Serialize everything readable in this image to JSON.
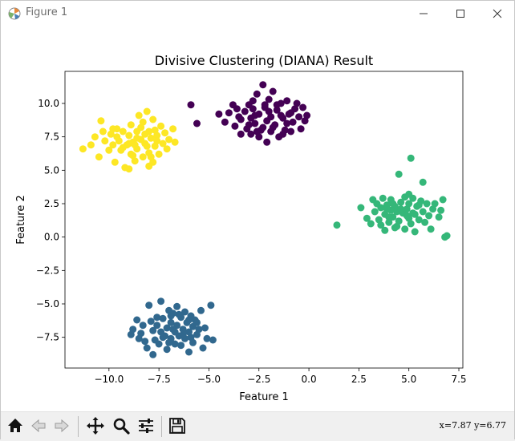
{
  "window": {
    "title": "Figure 1"
  },
  "toolbar": {
    "buttons": [
      "home-icon",
      "back-arrow-icon",
      "forward-arrow-icon",
      "pan-icon",
      "zoom-icon",
      "configure-subplots-icon",
      "save-icon"
    ],
    "coords": "x=7.87 y=6.77"
  },
  "chart_data": {
    "type": "scatter",
    "title": "Divisive Clustering (DIANA) Result",
    "xlabel": "Feature 1",
    "ylabel": "Feature 2",
    "xlim": [
      -12.2,
      7.7
    ],
    "ylim": [
      -9.8,
      12.4
    ],
    "xticks": [
      -10.0,
      -7.5,
      -5.0,
      -2.5,
      0.0,
      2.5,
      5.0,
      7.5
    ],
    "xtick_labels": [
      "−10.0",
      "−7.5",
      "−5.0",
      "−2.5",
      "0.0",
      "2.5",
      "5.0",
      "7.5"
    ],
    "yticks": [
      -7.5,
      -5.0,
      -2.5,
      0.0,
      2.5,
      5.0,
      7.5,
      10.0
    ],
    "ytick_labels": [
      "−7.5",
      "−5.0",
      "−2.5",
      "0.0",
      "2.5",
      "5.0",
      "7.5",
      "10.0"
    ],
    "grid": false,
    "series": [
      {
        "color": "#440154",
        "points": [
          [
            -5.9,
            9.9
          ],
          [
            -5.6,
            8.5
          ],
          [
            -4.5,
            9.2
          ],
          [
            -4.2,
            8.6
          ],
          [
            -4.0,
            9.3
          ],
          [
            -3.7,
            8.3
          ],
          [
            -3.6,
            9.6
          ],
          [
            -3.4,
            8.8
          ],
          [
            -3.4,
            7.7
          ],
          [
            -3.2,
            9.4
          ],
          [
            -3.1,
            8.1
          ],
          [
            -3.0,
            9.9
          ],
          [
            -2.9,
            7.7
          ],
          [
            -2.9,
            8.9
          ],
          [
            -2.8,
            9.6
          ],
          [
            -2.7,
            8.5
          ],
          [
            -2.6,
            10.7
          ],
          [
            -2.5,
            9.2
          ],
          [
            -2.5,
            7.5
          ],
          [
            -2.4,
            8.0
          ],
          [
            -2.3,
            11.4
          ],
          [
            -2.2,
            9.7
          ],
          [
            -2.1,
            8.7
          ],
          [
            -2.1,
            7.1
          ],
          [
            -2.0,
            10.3
          ],
          [
            -1.9,
            9.0
          ],
          [
            -1.9,
            7.9
          ],
          [
            -1.8,
            10.9
          ],
          [
            -1.7,
            8.4
          ],
          [
            -1.6,
            9.5
          ],
          [
            -1.5,
            7.5
          ],
          [
            -1.4,
            10.0
          ],
          [
            -1.3,
            8.9
          ],
          [
            -1.2,
            8.0
          ],
          [
            -1.1,
            10.2
          ],
          [
            -1.0,
            9.2
          ],
          [
            -0.9,
            7.9
          ],
          [
            -0.8,
            8.6
          ],
          [
            -0.7,
            9.6
          ],
          [
            -0.5,
            9.0
          ],
          [
            -0.4,
            8.1
          ],
          [
            -0.3,
            9.7
          ],
          [
            -0.2,
            8.7
          ],
          [
            -3.8,
            9.9
          ],
          [
            -2.7,
            9.1
          ],
          [
            -2.3,
            8.2
          ],
          [
            -1.6,
            9.9
          ],
          [
            -1.1,
            8.5
          ],
          [
            -0.6,
            10.0
          ],
          [
            -3.0,
            8.4
          ],
          [
            -2.0,
            9.4
          ],
          [
            -1.3,
            7.7
          ],
          [
            -2.8,
            10.2
          ],
          [
            -1.8,
            8.2
          ],
          [
            -0.9,
            9.3
          ],
          [
            -2.6,
            7.9
          ],
          [
            -3.5,
            9.0
          ],
          [
            -0.1,
            9.1
          ],
          [
            -2.2,
            9.9
          ],
          [
            -1.4,
            9.1
          ]
        ]
      },
      {
        "color": "#31688e",
        "points": [
          [
            -8.9,
            -7.3
          ],
          [
            -8.8,
            -6.9
          ],
          [
            -8.6,
            -6.2
          ],
          [
            -8.5,
            -7.6
          ],
          [
            -8.4,
            -7.2
          ],
          [
            -8.3,
            -6.6
          ],
          [
            -8.2,
            -7.8
          ],
          [
            -8.1,
            -8.3
          ],
          [
            -8.0,
            -5.1
          ],
          [
            -7.9,
            -6.3
          ],
          [
            -7.8,
            -7.0
          ],
          [
            -7.8,
            -8.8
          ],
          [
            -7.7,
            -7.7
          ],
          [
            -7.6,
            -6.6
          ],
          [
            -7.5,
            -8.0
          ],
          [
            -7.4,
            -7.1
          ],
          [
            -7.4,
            -4.8
          ],
          [
            -7.3,
            -6.1
          ],
          [
            -7.2,
            -7.4
          ],
          [
            -7.1,
            -8.4
          ],
          [
            -7.1,
            -6.8
          ],
          [
            -7.0,
            -5.5
          ],
          [
            -6.9,
            -7.6
          ],
          [
            -6.9,
            -6.4
          ],
          [
            -6.8,
            -5.7
          ],
          [
            -6.7,
            -7.1
          ],
          [
            -6.7,
            -8.0
          ],
          [
            -6.6,
            -6.6
          ],
          [
            -6.6,
            -5.2
          ],
          [
            -6.5,
            -7.4
          ],
          [
            -6.4,
            -6.0
          ],
          [
            -6.4,
            -8.1
          ],
          [
            -6.3,
            -6.9
          ],
          [
            -6.2,
            -5.6
          ],
          [
            -6.2,
            -7.6
          ],
          [
            -6.1,
            -6.4
          ],
          [
            -6.0,
            -7.1
          ],
          [
            -6.0,
            -8.6
          ],
          [
            -5.9,
            -5.9
          ],
          [
            -5.8,
            -6.7
          ],
          [
            -5.8,
            -7.9
          ],
          [
            -5.7,
            -6.2
          ],
          [
            -5.6,
            -7.3
          ],
          [
            -5.5,
            -6.9
          ],
          [
            -5.4,
            -5.5
          ],
          [
            -5.3,
            -8.3
          ],
          [
            -5.2,
            -6.8
          ],
          [
            -5.1,
            -7.6
          ],
          [
            -4.9,
            -5.1
          ],
          [
            -4.8,
            -7.7
          ],
          [
            -6.8,
            -6.9
          ],
          [
            -7.6,
            -6.0
          ],
          [
            -6.0,
            -6.2
          ],
          [
            -7.0,
            -7.9
          ],
          [
            -6.5,
            -5.8
          ],
          [
            -5.9,
            -7.5
          ],
          [
            -7.3,
            -7.5
          ],
          [
            -6.3,
            -7.3
          ],
          [
            -5.6,
            -6.4
          ],
          [
            -6.9,
            -5.9
          ]
        ]
      },
      {
        "color": "#35b779",
        "points": [
          [
            1.4,
            0.9
          ],
          [
            2.6,
            2.2
          ],
          [
            2.9,
            1.4
          ],
          [
            3.1,
            1.0
          ],
          [
            3.2,
            2.8
          ],
          [
            3.3,
            1.9
          ],
          [
            3.4,
            2.5
          ],
          [
            3.5,
            1.3
          ],
          [
            3.6,
            0.9
          ],
          [
            3.6,
            2.2
          ],
          [
            3.7,
            2.9
          ],
          [
            3.8,
            0.5
          ],
          [
            3.8,
            1.7
          ],
          [
            3.9,
            2.4
          ],
          [
            4.0,
            1.1
          ],
          [
            4.1,
            2.0
          ],
          [
            4.1,
            2.8
          ],
          [
            4.2,
            1.5
          ],
          [
            4.3,
            0.7
          ],
          [
            4.3,
            2.3
          ],
          [
            4.4,
            1.9
          ],
          [
            4.5,
            4.7
          ],
          [
            4.5,
            1.2
          ],
          [
            4.6,
            2.6
          ],
          [
            4.7,
            1.8
          ],
          [
            4.8,
            0.6
          ],
          [
            4.8,
            3.0
          ],
          [
            4.9,
            2.1
          ],
          [
            5.0,
            1.4
          ],
          [
            5.0,
            2.5
          ],
          [
            5.1,
            5.9
          ],
          [
            5.1,
            1.0
          ],
          [
            5.2,
            2.9
          ],
          [
            5.3,
            1.7
          ],
          [
            5.3,
            0.4
          ],
          [
            5.4,
            2.3
          ],
          [
            5.5,
            1.3
          ],
          [
            5.6,
            2.7
          ],
          [
            5.7,
            1.9
          ],
          [
            5.7,
            4.1
          ],
          [
            5.8,
            1.1
          ],
          [
            5.9,
            2.5
          ],
          [
            6.0,
            1.6
          ],
          [
            6.1,
            0.6
          ],
          [
            6.2,
            2.1
          ],
          [
            6.3,
            2.5
          ],
          [
            6.5,
            1.5
          ],
          [
            6.6,
            2.0
          ],
          [
            6.7,
            2.8
          ],
          [
            6.8,
            0.0
          ],
          [
            6.9,
            0.1
          ],
          [
            4.0,
            1.5
          ],
          [
            4.6,
            2.1
          ],
          [
            5.2,
            1.8
          ],
          [
            3.9,
            2.1
          ],
          [
            4.9,
            1.6
          ],
          [
            4.4,
            0.8
          ],
          [
            5.5,
            2.4
          ],
          [
            4.2,
            2.5
          ],
          [
            5.0,
            3.2
          ]
        ]
      },
      {
        "color": "#fde725",
        "points": [
          [
            -11.3,
            6.6
          ],
          [
            -10.9,
            6.9
          ],
          [
            -10.7,
            7.5
          ],
          [
            -10.5,
            6.0
          ],
          [
            -10.4,
            8.7
          ],
          [
            -10.3,
            7.9
          ],
          [
            -10.2,
            7.2
          ],
          [
            -10.0,
            6.5
          ],
          [
            -9.9,
            7.7
          ],
          [
            -9.8,
            6.9
          ],
          [
            -9.7,
            5.6
          ],
          [
            -9.6,
            8.1
          ],
          [
            -9.5,
            7.2
          ],
          [
            -9.4,
            6.5
          ],
          [
            -9.3,
            7.9
          ],
          [
            -9.2,
            5.2
          ],
          [
            -9.1,
            6.9
          ],
          [
            -9.0,
            7.6
          ],
          [
            -8.9,
            6.2
          ],
          [
            -8.9,
            8.4
          ],
          [
            -8.8,
            7.1
          ],
          [
            -8.7,
            5.7
          ],
          [
            -8.6,
            7.9
          ],
          [
            -8.6,
            6.6
          ],
          [
            -8.5,
            9.1
          ],
          [
            -8.4,
            7.3
          ],
          [
            -8.3,
            6.0
          ],
          [
            -8.3,
            8.6
          ],
          [
            -8.2,
            7.0
          ],
          [
            -8.1,
            9.4
          ],
          [
            -8.0,
            6.3
          ],
          [
            -8.0,
            7.9
          ],
          [
            -7.9,
            7.4
          ],
          [
            -7.8,
            5.6
          ],
          [
            -7.8,
            8.8
          ],
          [
            -7.7,
            6.8
          ],
          [
            -7.6,
            7.6
          ],
          [
            -7.5,
            6.2
          ],
          [
            -7.4,
            8.3
          ],
          [
            -7.3,
            7.0
          ],
          [
            -7.2,
            7.8
          ],
          [
            -7.1,
            6.6
          ],
          [
            -7.0,
            7.3
          ],
          [
            -6.8,
            8.1
          ],
          [
            -6.7,
            7.1
          ],
          [
            -9.0,
            5.1
          ],
          [
            -8.0,
            5.3
          ],
          [
            -9.3,
            6.7
          ],
          [
            -8.6,
            7.4
          ],
          [
            -8.1,
            6.8
          ],
          [
            -8.4,
            8.2
          ],
          [
            -9.0,
            7.0
          ],
          [
            -7.9,
            6.0
          ],
          [
            -8.7,
            6.9
          ],
          [
            -9.6,
            7.5
          ],
          [
            -7.6,
            7.2
          ],
          [
            -8.2,
            7.7
          ],
          [
            -9.8,
            8.1
          ],
          [
            -8.8,
            6.1
          ],
          [
            -7.7,
            8.0
          ]
        ]
      }
    ]
  }
}
